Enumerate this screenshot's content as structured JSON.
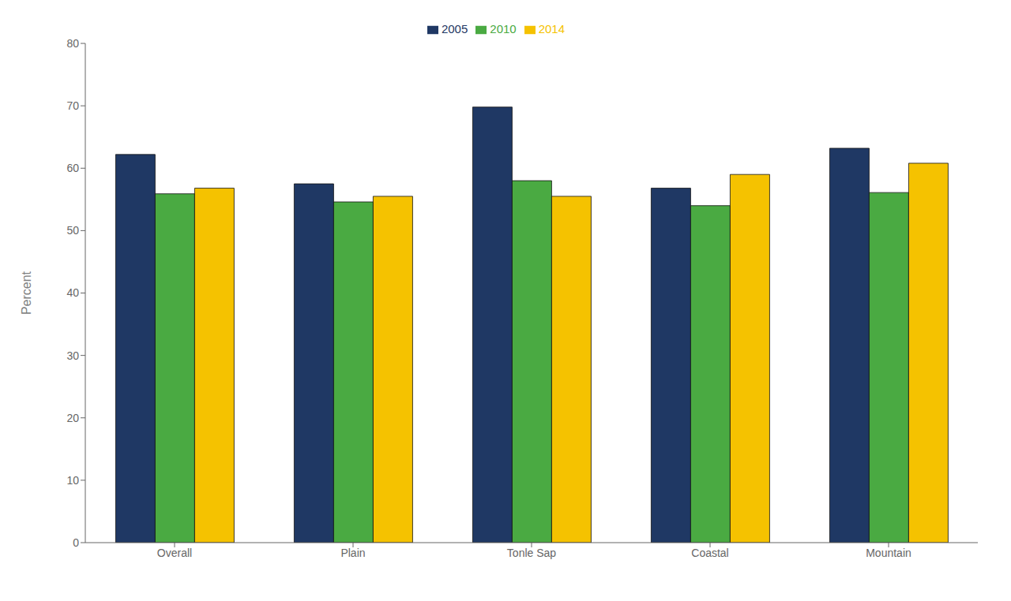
{
  "chart_data": {
    "type": "bar",
    "categories": [
      "Overall",
      "Plain",
      "Tonle Sap",
      "Coastal",
      "Mountain"
    ],
    "series": [
      {
        "name": "2005",
        "color": "#1f3864",
        "values": [
          62.2,
          57.5,
          69.8,
          56.8,
          63.2
        ]
      },
      {
        "name": "2010",
        "color": "#4aaa42",
        "values": [
          55.9,
          54.6,
          58.0,
          54.0,
          56.1
        ]
      },
      {
        "name": "2014",
        "color": "#f5c200",
        "values": [
          56.8,
          55.5,
          55.5,
          59.0,
          60.8
        ]
      }
    ],
    "ylabel": "Percent",
    "ylim": [
      0,
      80
    ],
    "yticks": [
      0,
      10,
      20,
      30,
      40,
      50,
      60,
      70,
      80
    ],
    "grid": false,
    "legend": "top"
  }
}
